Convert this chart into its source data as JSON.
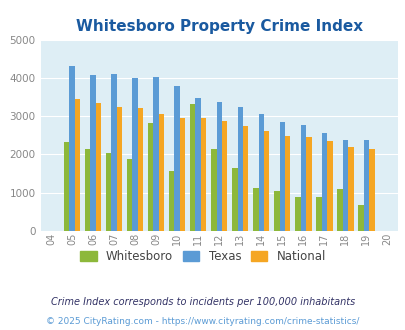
{
  "title": "Whitesboro Property Crime Index",
  "years": [
    "04",
    "05",
    "06",
    "07",
    "08",
    "09",
    "10",
    "11",
    "12",
    "13",
    "14",
    "15",
    "16",
    "17",
    "18",
    "19",
    "20"
  ],
  "plot_years_idx": [
    1,
    2,
    3,
    4,
    5,
    6,
    7,
    8,
    9,
    10,
    11,
    12,
    13,
    14,
    15
  ],
  "whitesboro": [
    2330,
    2140,
    2030,
    1890,
    2810,
    1560,
    3320,
    2130,
    1650,
    1130,
    1050,
    880,
    900,
    1100,
    680
  ],
  "texas": [
    4300,
    4070,
    4090,
    3990,
    4020,
    3800,
    3480,
    3380,
    3250,
    3050,
    2840,
    2760,
    2570,
    2390,
    2390
  ],
  "national": [
    3450,
    3340,
    3240,
    3220,
    3050,
    2960,
    2960,
    2880,
    2730,
    2610,
    2490,
    2450,
    2360,
    2200,
    2130
  ],
  "whitesboro_color": "#8db83a",
  "texas_color": "#5b9bd5",
  "national_color": "#f5a623",
  "bg_color": "#deeef5",
  "ylim": [
    0,
    5000
  ],
  "yticks": [
    0,
    1000,
    2000,
    3000,
    4000,
    5000
  ],
  "legend_labels": [
    "Whitesboro",
    "Texas",
    "National"
  ],
  "footnote1": "Crime Index corresponds to incidents per 100,000 inhabitants",
  "footnote2": "© 2025 CityRating.com - https://www.cityrating.com/crime-statistics/",
  "title_color": "#1a5aa0",
  "footnote1_color": "#333366",
  "footnote2_color": "#5b9bd5"
}
